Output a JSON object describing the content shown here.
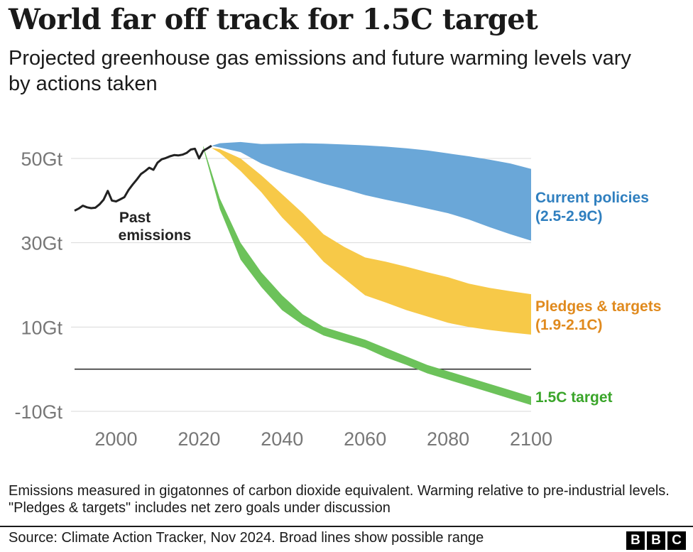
{
  "header": {
    "title": "World far off track for 1.5C target",
    "subtitle": "Projected greenhouse gas emissions and future warming levels vary by actions taken"
  },
  "footer": {
    "note": "Emissions measured in gigatonnes of carbon dioxide equivalent. Warming relative to pre-industrial levels. \"Pledges & targets\" includes net zero goals under discussion",
    "source": "Source: Climate Action Tracker, Nov 2024. Broad lines show possible range",
    "logo_letters": [
      "B",
      "B",
      "C"
    ]
  },
  "chart_data": {
    "type": "area",
    "x_ticks": [
      2000,
      2020,
      2040,
      2060,
      2080,
      2100
    ],
    "x_tick_labels": [
      "2000",
      "2020",
      "2040",
      "2060",
      "2080",
      "2100"
    ],
    "y_ticks": [
      50,
      30,
      10,
      -10
    ],
    "y_tick_labels": [
      "50Gt",
      "30Gt",
      "10Gt",
      "-10Gt"
    ],
    "xlim": [
      1990,
      2100
    ],
    "ylim": [
      -12,
      57
    ],
    "grid": true,
    "zero_line": true,
    "colors": {
      "past": "#222222",
      "current": "#6aa7d8",
      "pledges": "#f7c948",
      "target": "#6cc25a",
      "grid": "#d9d9d9",
      "axis_text": "#777777",
      "current_label": "#2f7fbf",
      "pledges_label": "#e08a1e",
      "target_label": "#3aa52a"
    },
    "past_emissions": {
      "label": "Past emissions",
      "x": [
        1990,
        1991,
        1992,
        1993,
        1994,
        1995,
        1996,
        1997,
        1998,
        1999,
        2000,
        2001,
        2002,
        2003,
        2004,
        2005,
        2006,
        2007,
        2008,
        2009,
        2010,
        2011,
        2012,
        2013,
        2014,
        2015,
        2016,
        2017,
        2018,
        2019,
        2020,
        2021,
        2022,
        2023
      ],
      "y": [
        37.6,
        38.1,
        38.8,
        38.4,
        38.2,
        38.3,
        39.1,
        40.2,
        42.3,
        40.0,
        39.8,
        40.3,
        40.8,
        42.5,
        43.8,
        45.0,
        46.3,
        47.0,
        47.8,
        47.3,
        49.0,
        49.8,
        50.1,
        50.5,
        50.8,
        50.7,
        50.9,
        51.3,
        52.1,
        52.3,
        50.0,
        51.8,
        52.4,
        53.0
      ]
    },
    "series": [
      {
        "name": "Current policies (2.5-2.9C)",
        "label_line1": "Current policies",
        "label_line2": "(2.5-2.9C)",
        "x": [
          2023,
          2025,
          2030,
          2035,
          2040,
          2045,
          2050,
          2055,
          2060,
          2065,
          2070,
          2075,
          2080,
          2085,
          2090,
          2095,
          2100
        ],
        "upper": [
          53.0,
          53.6,
          53.9,
          53.4,
          53.5,
          53.6,
          53.5,
          53.3,
          53.1,
          52.8,
          52.4,
          51.9,
          51.2,
          50.5,
          49.7,
          48.8,
          47.5
        ],
        "lower": [
          53.0,
          52.6,
          51.5,
          48.8,
          47.0,
          45.5,
          44.0,
          42.7,
          41.3,
          40.2,
          39.2,
          38.1,
          37.0,
          35.5,
          33.7,
          32.0,
          30.5
        ]
      },
      {
        "name": "Pledges & targets (1.9-2.1C)",
        "label_line1": "Pledges & targets",
        "label_line2": "(1.9-2.1C)",
        "x": [
          2023,
          2025,
          2030,
          2035,
          2040,
          2045,
          2050,
          2055,
          2060,
          2065,
          2070,
          2075,
          2080,
          2085,
          2090,
          2095,
          2100
        ],
        "upper": [
          52.5,
          52.2,
          50.0,
          46.0,
          41.5,
          37.0,
          32.0,
          29.0,
          26.5,
          25.5,
          24.3,
          23.0,
          21.8,
          20.3,
          19.3,
          18.5,
          17.8
        ],
        "lower": [
          52.5,
          51.3,
          47.0,
          42.0,
          36.0,
          31.0,
          25.5,
          21.5,
          17.5,
          15.8,
          14.0,
          12.5,
          11.0,
          10.0,
          9.3,
          8.7,
          8.2
        ]
      },
      {
        "name": "1.5C target",
        "label_line1": "1.5C target",
        "label_line2": "",
        "x": [
          2021,
          2025,
          2030,
          2035,
          2040,
          2045,
          2050,
          2055,
          2060,
          2065,
          2070,
          2075,
          2080,
          2085,
          2090,
          2095,
          2100
        ],
        "upper": [
          53.0,
          40.5,
          30.0,
          23.0,
          17.5,
          13.0,
          10.0,
          8.5,
          7.0,
          5.0,
          3.0,
          1.0,
          -0.5,
          -2.0,
          -3.5,
          -5.0,
          -6.5
        ],
        "lower": [
          52.5,
          38.0,
          26.0,
          19.5,
          14.0,
          10.5,
          8.0,
          6.5,
          5.0,
          2.8,
          1.0,
          -1.0,
          -2.5,
          -4.0,
          -5.5,
          -7.0,
          -8.5
        ]
      }
    ]
  }
}
